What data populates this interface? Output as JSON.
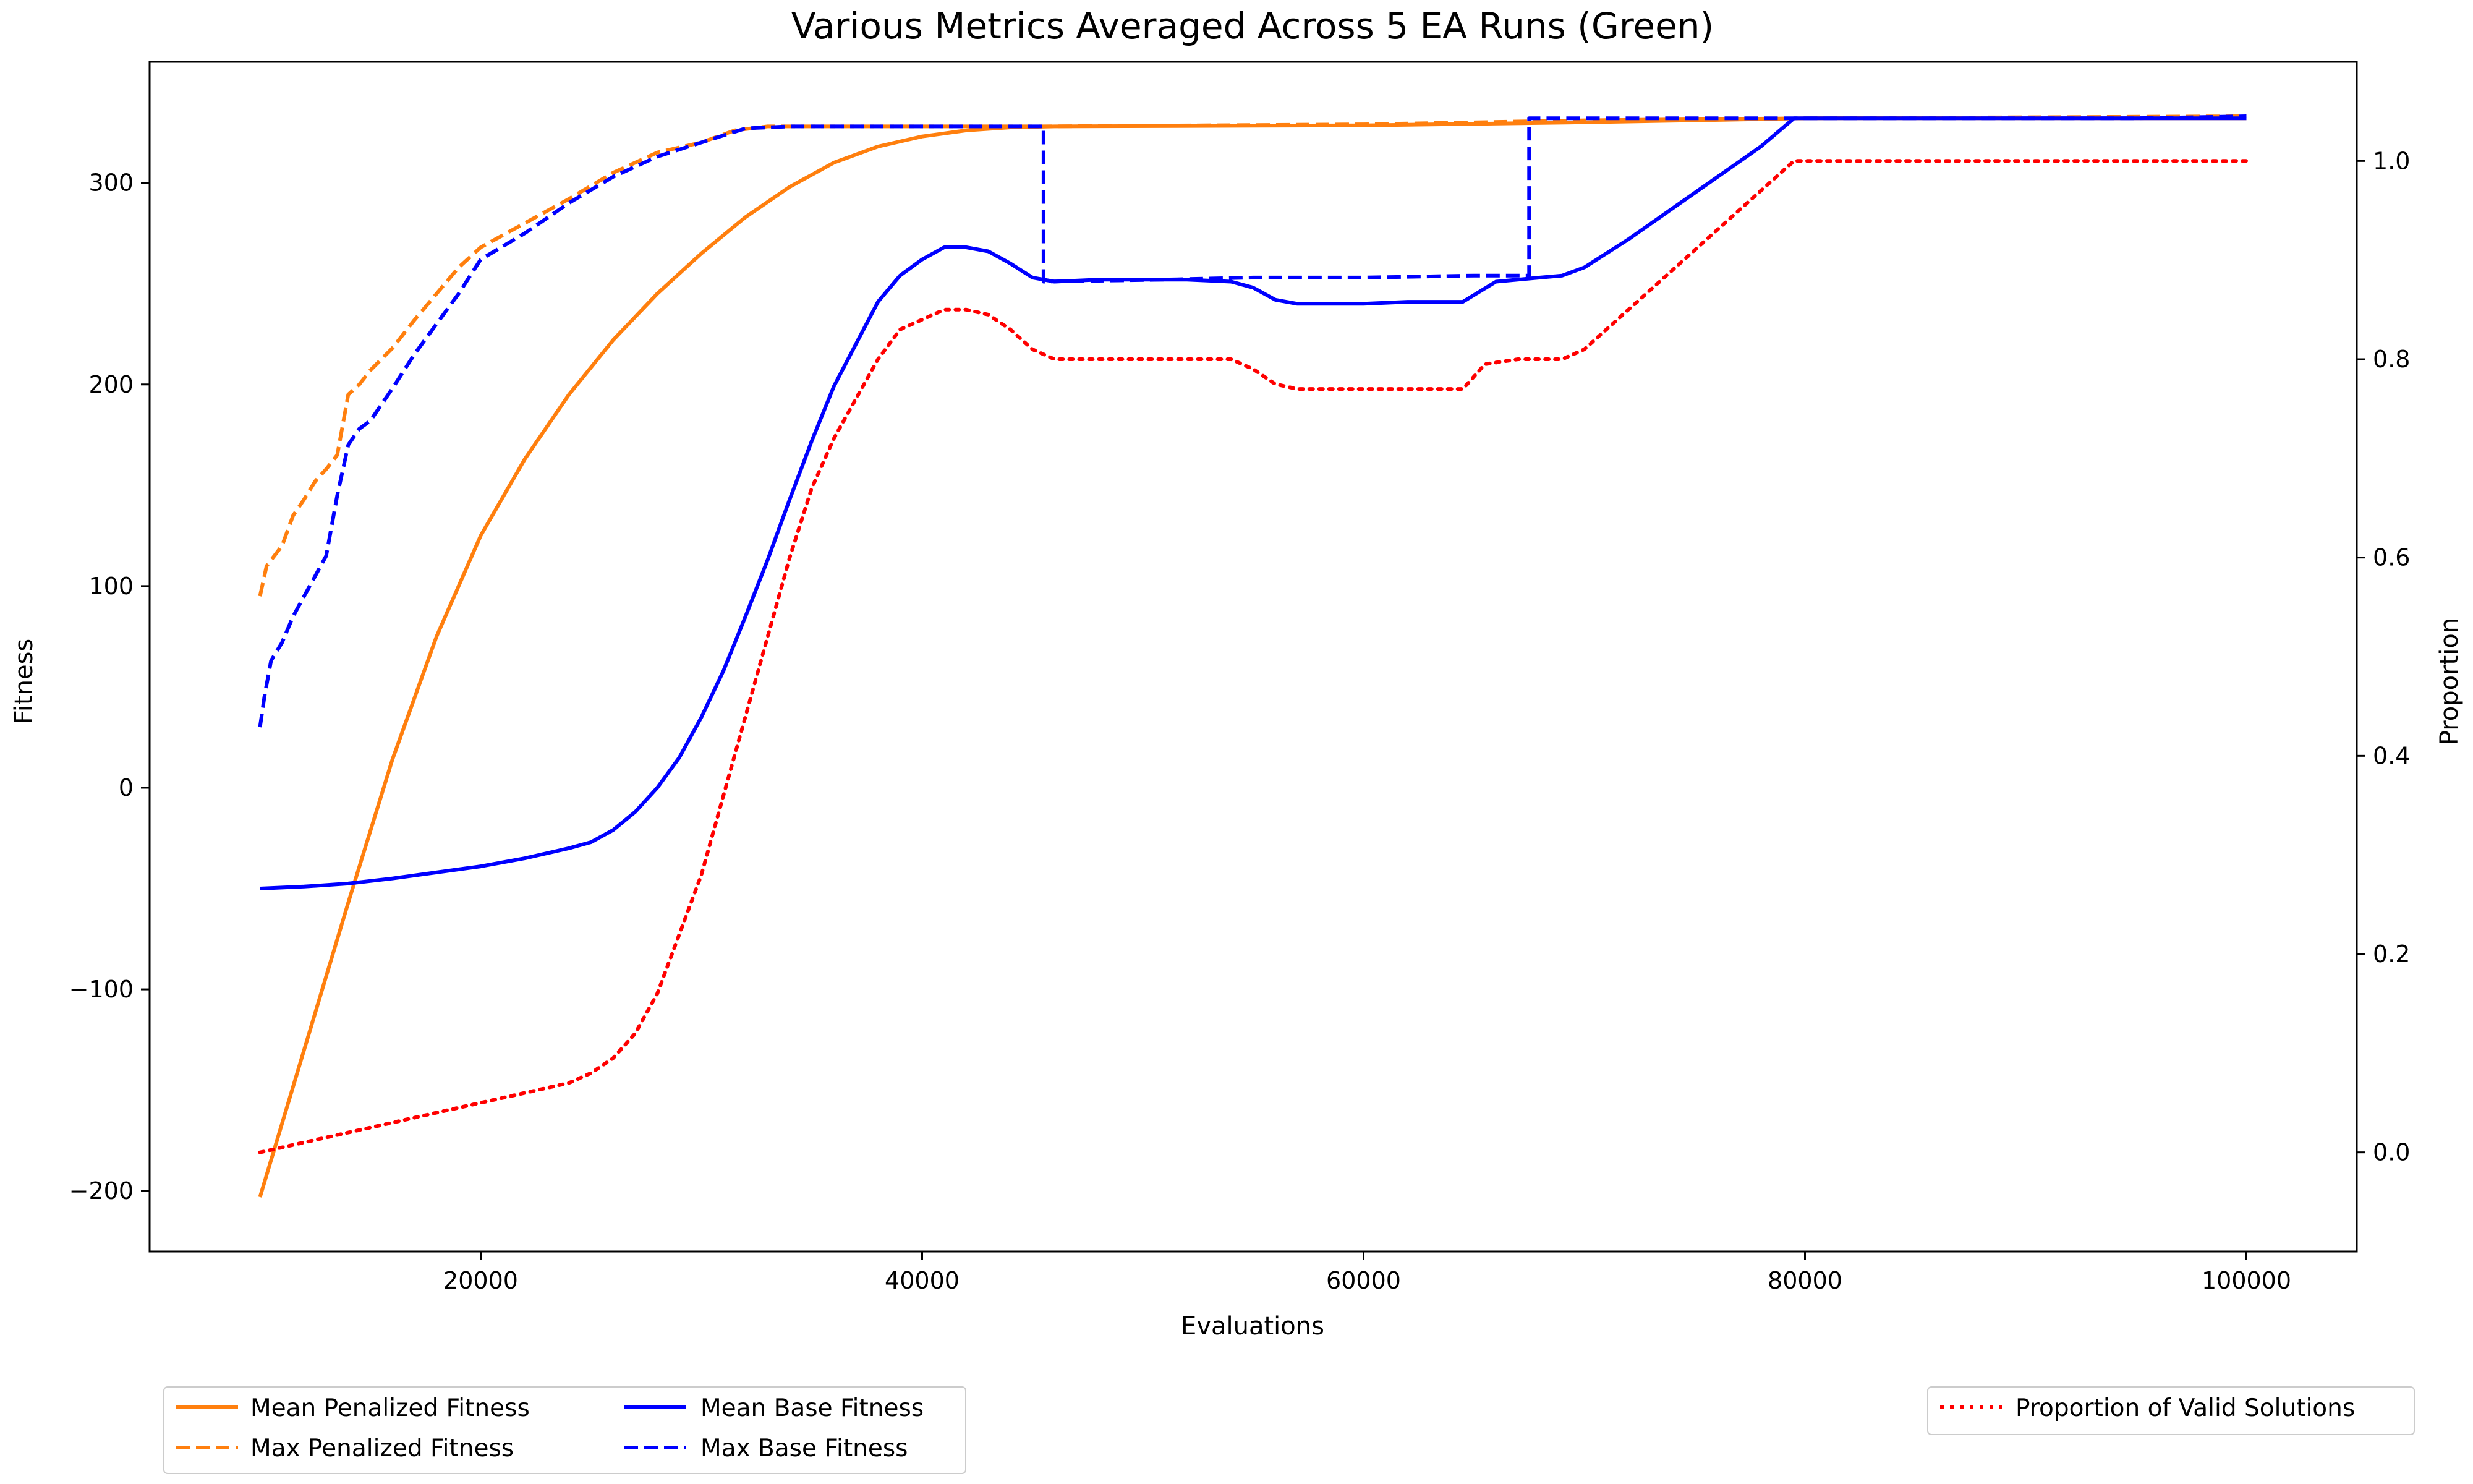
{
  "chart_data": {
    "type": "line",
    "title": "Various Metrics Averaged Across 5 EA Runs (Green)",
    "xlabel": "Evaluations",
    "ylabel": "Fitness",
    "y2label": "Proportion",
    "xlim": [
      5000,
      105000
    ],
    "ylim": [
      -230,
      360
    ],
    "y2lim": [
      -0.1,
      1.1
    ],
    "xticks": [
      20000,
      40000,
      60000,
      80000,
      100000
    ],
    "yticks": [
      -200,
      -100,
      0,
      100,
      200,
      300
    ],
    "yticklabels": [
      "−200",
      "−100",
      "0",
      "100",
      "200",
      "300"
    ],
    "y2ticks": [
      0.0,
      0.2,
      0.4,
      0.6,
      0.8,
      1.0
    ],
    "y2ticklabels": [
      "0.0",
      "0.2",
      "0.4",
      "0.6",
      "0.8",
      "1.0"
    ],
    "grid": false,
    "colors": {
      "orange": "#ff7f0e",
      "blue": "#0000ff",
      "red": "#ff0000"
    },
    "series": [
      {
        "name": "Mean Penalized Fitness",
        "axis": "left",
        "color": "#ff7f0e",
        "style": "solid",
        "points": [
          [
            10000,
            -203
          ],
          [
            12000,
            -130
          ],
          [
            14000,
            -57
          ],
          [
            16000,
            14
          ],
          [
            18000,
            75
          ],
          [
            20000,
            125
          ],
          [
            22000,
            163
          ],
          [
            24000,
            195
          ],
          [
            26000,
            222
          ],
          [
            28000,
            245
          ],
          [
            30000,
            265
          ],
          [
            32000,
            283
          ],
          [
            34000,
            298
          ],
          [
            36000,
            310
          ],
          [
            38000,
            318
          ],
          [
            40000,
            323
          ],
          [
            42000,
            326
          ],
          [
            44000,
            327.5
          ],
          [
            46000,
            328
          ],
          [
            60000,
            328.5
          ],
          [
            70000,
            330
          ],
          [
            80000,
            332
          ],
          [
            100000,
            332
          ]
        ]
      },
      {
        "name": "Max Penalized Fitness",
        "axis": "left",
        "color": "#ff7f0e",
        "style": "dashed",
        "points": [
          [
            10000,
            95
          ],
          [
            10300,
            110
          ],
          [
            11000,
            120
          ],
          [
            11500,
            135
          ],
          [
            12000,
            143
          ],
          [
            12500,
            152
          ],
          [
            13000,
            158
          ],
          [
            13500,
            165
          ],
          [
            14000,
            195
          ],
          [
            14500,
            200
          ],
          [
            15000,
            207
          ],
          [
            16000,
            218
          ],
          [
            17000,
            232
          ],
          [
            18000,
            245
          ],
          [
            19000,
            258
          ],
          [
            20000,
            268
          ],
          [
            22000,
            280
          ],
          [
            24000,
            292
          ],
          [
            26000,
            305
          ],
          [
            28000,
            315
          ],
          [
            30000,
            320
          ],
          [
            31500,
            326
          ],
          [
            33000,
            328
          ],
          [
            35000,
            328
          ],
          [
            40000,
            328
          ],
          [
            45500,
            328
          ],
          [
            60000,
            329
          ],
          [
            70000,
            331
          ],
          [
            80000,
            332
          ],
          [
            100000,
            333
          ]
        ]
      },
      {
        "name": "Mean Base Fitness",
        "axis": "left",
        "color": "#0000ff",
        "style": "solid",
        "points": [
          [
            10000,
            -50
          ],
          [
            12000,
            -49
          ],
          [
            14000,
            -47.5
          ],
          [
            16000,
            -45
          ],
          [
            18000,
            -42
          ],
          [
            20000,
            -39
          ],
          [
            22000,
            -35
          ],
          [
            24000,
            -30
          ],
          [
            25000,
            -27
          ],
          [
            26000,
            -21
          ],
          [
            27000,
            -12
          ],
          [
            28000,
            0
          ],
          [
            29000,
            15
          ],
          [
            30000,
            35
          ],
          [
            31000,
            58
          ],
          [
            32000,
            85
          ],
          [
            33000,
            113
          ],
          [
            34000,
            143
          ],
          [
            35000,
            172
          ],
          [
            36000,
            199
          ],
          [
            37000,
            220
          ],
          [
            38000,
            241
          ],
          [
            39000,
            254
          ],
          [
            40000,
            262
          ],
          [
            41000,
            268
          ],
          [
            42000,
            268
          ],
          [
            43000,
            266
          ],
          [
            44000,
            260
          ],
          [
            45000,
            253
          ],
          [
            46000,
            251
          ],
          [
            48000,
            252
          ],
          [
            50000,
            252
          ],
          [
            52000,
            252
          ],
          [
            54000,
            251
          ],
          [
            55000,
            248
          ],
          [
            56000,
            242
          ],
          [
            57000,
            240
          ],
          [
            60000,
            240
          ],
          [
            62000,
            241
          ],
          [
            64500,
            241
          ],
          [
            66000,
            251
          ],
          [
            68000,
            253
          ],
          [
            69000,
            254
          ],
          [
            70000,
            258
          ],
          [
            72000,
            272
          ],
          [
            75000,
            295
          ],
          [
            78000,
            318
          ],
          [
            79500,
            332
          ],
          [
            100000,
            332
          ]
        ]
      },
      {
        "name": "Max Base Fitness",
        "axis": "left",
        "color": "#0000ff",
        "style": "dashed",
        "points": [
          [
            10000,
            30
          ],
          [
            10200,
            45
          ],
          [
            10500,
            63
          ],
          [
            11000,
            72
          ],
          [
            11500,
            85
          ],
          [
            12000,
            95
          ],
          [
            12500,
            105
          ],
          [
            13000,
            115
          ],
          [
            13500,
            145
          ],
          [
            14000,
            170
          ],
          [
            14500,
            178
          ],
          [
            15000,
            182
          ],
          [
            16000,
            198
          ],
          [
            17000,
            215
          ],
          [
            18000,
            230
          ],
          [
            19000,
            245
          ],
          [
            20000,
            262
          ],
          [
            22000,
            275
          ],
          [
            24000,
            290
          ],
          [
            26000,
            303
          ],
          [
            28000,
            313
          ],
          [
            30000,
            320
          ],
          [
            32000,
            327
          ],
          [
            34000,
            328
          ],
          [
            40000,
            328
          ],
          [
            45500,
            328
          ],
          [
            45500,
            251
          ],
          [
            51000,
            252
          ],
          [
            55000,
            253
          ],
          [
            60000,
            253
          ],
          [
            65000,
            254
          ],
          [
            67500,
            254
          ],
          [
            67500,
            332
          ],
          [
            80000,
            332
          ],
          [
            95000,
            332
          ],
          [
            100000,
            333
          ]
        ]
      },
      {
        "name": "Proportion of Valid Solutions",
        "axis": "right",
        "color": "#ff0000",
        "style": "dotted",
        "points": [
          [
            10000,
            0.0
          ],
          [
            12000,
            0.01
          ],
          [
            14000,
            0.02
          ],
          [
            16000,
            0.03
          ],
          [
            18000,
            0.04
          ],
          [
            20000,
            0.05
          ],
          [
            22000,
            0.06
          ],
          [
            24000,
            0.07
          ],
          [
            25000,
            0.08
          ],
          [
            26000,
            0.095
          ],
          [
            27000,
            0.12
          ],
          [
            28000,
            0.16
          ],
          [
            29000,
            0.22
          ],
          [
            30000,
            0.28
          ],
          [
            31000,
            0.36
          ],
          [
            32000,
            0.44
          ],
          [
            33000,
            0.52
          ],
          [
            34000,
            0.6
          ],
          [
            35000,
            0.67
          ],
          [
            36000,
            0.72
          ],
          [
            37000,
            0.76
          ],
          [
            38000,
            0.8
          ],
          [
            39000,
            0.83
          ],
          [
            40000,
            0.84
          ],
          [
            41000,
            0.85
          ],
          [
            42000,
            0.85
          ],
          [
            43000,
            0.845
          ],
          [
            44000,
            0.83
          ],
          [
            45000,
            0.81
          ],
          [
            46000,
            0.8
          ],
          [
            50000,
            0.8
          ],
          [
            54000,
            0.8
          ],
          [
            55000,
            0.79
          ],
          [
            56000,
            0.775
          ],
          [
            57000,
            0.77
          ],
          [
            60000,
            0.77
          ],
          [
            64500,
            0.77
          ],
          [
            65500,
            0.795
          ],
          [
            67000,
            0.8
          ],
          [
            69000,
            0.8
          ],
          [
            70000,
            0.81
          ],
          [
            72000,
            0.85
          ],
          [
            75000,
            0.91
          ],
          [
            78000,
            0.97
          ],
          [
            79500,
            1.0
          ],
          [
            100000,
            1.0
          ]
        ]
      }
    ],
    "legend_left": {
      "col1": [
        "Mean Penalized Fitness",
        "Max Penalized Fitness"
      ],
      "col2": [
        "Mean Base Fitness",
        "Max Base Fitness"
      ]
    },
    "legend_right": [
      "Proportion of Valid Solutions"
    ],
    "legend_placement": "below plot (left and right)"
  }
}
